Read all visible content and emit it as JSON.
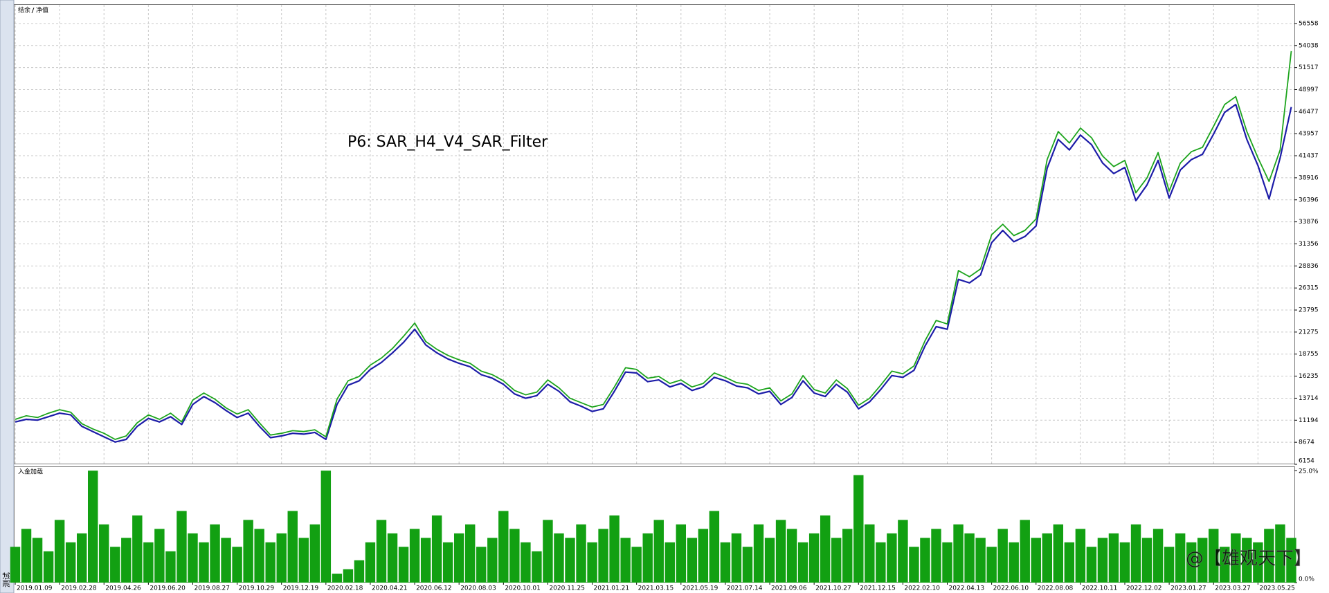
{
  "side_tab": "测试",
  "watermark": "@【雄观天下】",
  "chart_data": [
    {
      "type": "line",
      "annotation": "P6: SAR_H4_V4_SAR_Filter",
      "ylim": [
        6154,
        58690
      ],
      "yticks": [
        6154,
        8674,
        11194,
        13714,
        16235,
        18755,
        21275,
        23795,
        26315,
        28836,
        31356,
        33876,
        36396,
        38916,
        41437,
        43957,
        46477,
        48997,
        51517,
        54038,
        56558
      ],
      "grid": true,
      "series": [
        {
          "name": "结余",
          "color": "#1c1ca8",
          "values": [
            11000,
            11300,
            11200,
            11600,
            12000,
            11800,
            10500,
            9900,
            9300,
            8700,
            9000,
            10500,
            11400,
            11000,
            11600,
            10700,
            13000,
            13900,
            13200,
            12300,
            11500,
            12000,
            10500,
            9200,
            9400,
            9700,
            9600,
            9800,
            9000,
            13000,
            15200,
            15700,
            17000,
            17800,
            18900,
            20100,
            21600,
            19800,
            18900,
            18200,
            17700,
            17300,
            16400,
            16000,
            15300,
            14200,
            13700,
            14000,
            15300,
            14500,
            13300,
            12800,
            12200,
            12500,
            14500,
            16700,
            16600,
            15600,
            15800,
            15000,
            15400,
            14600,
            15000,
            16100,
            15700,
            15100,
            14900,
            14200,
            14500,
            13000,
            13800,
            15700,
            14300,
            13900,
            15300,
            14400,
            12500,
            13300,
            14700,
            16300,
            16100,
            16900,
            19700,
            21900,
            21600,
            27300,
            26900,
            27800,
            31500,
            32900,
            31600,
            32200,
            33400,
            40000,
            43300,
            42100,
            43800,
            42700,
            40600,
            39400,
            40100,
            36300,
            38100,
            40900,
            36600,
            39800,
            41000,
            41600,
            43900,
            46400,
            47300,
            43300,
            40300,
            36500,
            41200,
            47000
          ]
        },
        {
          "name": "净值",
          "color": "#1ca41c",
          "values": [
            11300,
            11700,
            11500,
            12000,
            12400,
            12100,
            10800,
            10200,
            9700,
            9000,
            9400,
            10900,
            11800,
            11300,
            12000,
            11000,
            13500,
            14300,
            13600,
            12600,
            11900,
            12400,
            10900,
            9500,
            9700,
            10000,
            9900,
            10100,
            9300,
            13600,
            15700,
            16200,
            17500,
            18300,
            19400,
            20800,
            22300,
            20200,
            19300,
            18600,
            18100,
            17700,
            16800,
            16400,
            15700,
            14600,
            14100,
            14400,
            15800,
            14900,
            13700,
            13200,
            12700,
            13000,
            15000,
            17200,
            17000,
            16000,
            16200,
            15400,
            15800,
            15000,
            15400,
            16600,
            16100,
            15500,
            15300,
            14600,
            14900,
            13400,
            14200,
            16300,
            14700,
            14300,
            15800,
            14800,
            12900,
            13700,
            15200,
            16800,
            16500,
            17400,
            20300,
            22600,
            22200,
            28300,
            27600,
            28500,
            32400,
            33600,
            32300,
            32900,
            34200,
            41000,
            44200,
            42900,
            44600,
            43500,
            41400,
            40200,
            40900,
            37200,
            38900,
            41800,
            37400,
            40600,
            41900,
            42400,
            44800,
            47300,
            48200,
            44200,
            41200,
            38500,
            42100,
            53400
          ]
        }
      ]
    },
    {
      "type": "bar",
      "title": "入金加载",
      "color": "#12a012",
      "ylim": [
        0,
        25.8
      ],
      "yticks": [
        {
          "value": 0,
          "label": "0.0%"
        },
        {
          "value": 25,
          "label": "25.0%"
        }
      ],
      "categories": [
        "2019.01.09",
        null,
        null,
        null,
        "2019.02.28",
        null,
        null,
        null,
        "2019.04.26",
        null,
        null,
        null,
        "2019.06.20",
        null,
        null,
        null,
        "2019.08.27",
        null,
        null,
        null,
        "2019.10.29",
        null,
        null,
        null,
        "2019.12.19",
        null,
        null,
        null,
        "2020.02.18",
        null,
        null,
        null,
        "2020.04.21",
        null,
        null,
        null,
        "2020.06.12",
        null,
        null,
        null,
        "2020.08.03",
        null,
        null,
        null,
        "2020.10.01",
        null,
        null,
        null,
        "2020.11.25",
        null,
        null,
        null,
        "2021.01.21",
        null,
        null,
        null,
        "2021.03.15",
        null,
        null,
        null,
        "2021.05.19",
        null,
        null,
        null,
        "2021.07.14",
        null,
        null,
        null,
        "2021.09.06",
        null,
        null,
        null,
        "2021.10.27",
        null,
        null,
        null,
        "2021.12.15",
        null,
        null,
        null,
        "2022.02.10",
        null,
        null,
        null,
        "2022.04.13",
        null,
        null,
        null,
        "2022.06.10",
        null,
        null,
        null,
        "2022.08.08",
        null,
        null,
        null,
        "2022.10.11",
        null,
        null,
        null,
        "2022.12.02",
        null,
        null,
        null,
        "2023.01.27",
        null,
        null,
        null,
        "2023.03.27",
        null,
        null,
        null,
        "2023.05.25",
        null,
        null,
        null
      ],
      "values": [
        8,
        12,
        10,
        7,
        14,
        9,
        11,
        25,
        13,
        8,
        10,
        15,
        9,
        12,
        7,
        16,
        11,
        9,
        13,
        10,
        8,
        14,
        12,
        9,
        11,
        16,
        10,
        13,
        25,
        2,
        3,
        5,
        9,
        14,
        11,
        8,
        12,
        10,
        15,
        9,
        11,
        13,
        8,
        10,
        16,
        12,
        9,
        7,
        14,
        11,
        10,
        13,
        9,
        12,
        15,
        10,
        8,
        11,
        14,
        9,
        13,
        10,
        12,
        16,
        9,
        11,
        8,
        13,
        10,
        14,
        12,
        9,
        11,
        15,
        10,
        12,
        24,
        13,
        9,
        11,
        14,
        8,
        10,
        12,
        9,
        13,
        11,
        10,
        8,
        12,
        9,
        14,
        10,
        11,
        13,
        9,
        12,
        8,
        10,
        11,
        9,
        13,
        10,
        12,
        8,
        11,
        9,
        10,
        12,
        8,
        11,
        10,
        9,
        12,
        13,
        10
      ]
    }
  ]
}
